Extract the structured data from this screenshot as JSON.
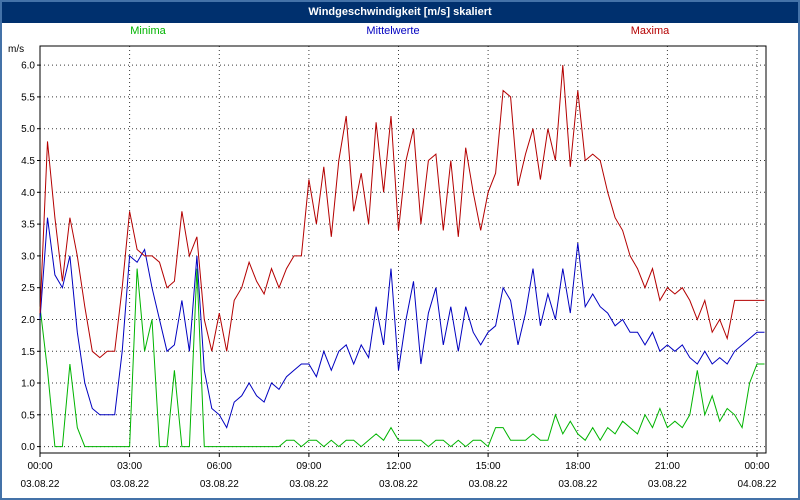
{
  "window": {
    "title": "Windgeschwindigkeit [m/s] skaliert"
  },
  "colors": {
    "titlebar_bg": "#00306e",
    "frame_border": "#4472a8",
    "grid": "#3a3a3a",
    "axis": "#000000",
    "minima": "#00b400",
    "mittelwerte": "#0000c0",
    "maxima": "#b40000"
  },
  "chart_data": {
    "type": "line",
    "title": "Windgeschwindigkeit [m/s] skaliert",
    "ylabel": "m/s",
    "xlabel": "",
    "grid": "dotted",
    "legend_position": "top",
    "ylim": [
      -0.1,
      6.3
    ],
    "xlim_hours": [
      0,
      24.3
    ],
    "x_step_hours": 0.25,
    "y_ticks": [
      6.0,
      5.5,
      5.0,
      4.5,
      4.0,
      3.5,
      3.0,
      2.5,
      2.0,
      1.5,
      1.0,
      0.5,
      0.0
    ],
    "x_ticks": [
      {
        "hour": 0,
        "time": "00:00",
        "date": "03.08.22"
      },
      {
        "hour": 3,
        "time": "03:00",
        "date": "03.08.22"
      },
      {
        "hour": 6,
        "time": "06:00",
        "date": "03.08.22"
      },
      {
        "hour": 9,
        "time": "09:00",
        "date": "03.08.22"
      },
      {
        "hour": 12,
        "time": "12:00",
        "date": "03.08.22"
      },
      {
        "hour": 15,
        "time": "15:00",
        "date": "03.08.22"
      },
      {
        "hour": 18,
        "time": "18:00",
        "date": "03.08.22"
      },
      {
        "hour": 21,
        "time": "21:00",
        "date": "03.08.22"
      },
      {
        "hour": 24,
        "time": "00:00",
        "date": "04.08.22"
      }
    ],
    "series": [
      {
        "name": "Minima",
        "color": "#00b400",
        "values": [
          2.2,
          1.2,
          0.0,
          0.0,
          1.3,
          0.3,
          0.0,
          0.0,
          0.0,
          0.0,
          0.0,
          0.0,
          0.0,
          2.8,
          1.5,
          2.0,
          0.0,
          0.0,
          1.2,
          0.0,
          0.0,
          2.8,
          0.0,
          0.0,
          0.0,
          0.0,
          0.0,
          0.0,
          0.0,
          0.0,
          0.0,
          0.0,
          0.0,
          0.1,
          0.1,
          0.0,
          0.1,
          0.1,
          0.0,
          0.1,
          0.0,
          0.1,
          0.1,
          0.0,
          0.1,
          0.2,
          0.1,
          0.3,
          0.1,
          0.1,
          0.1,
          0.1,
          0.0,
          0.1,
          0.1,
          0.0,
          0.1,
          0.0,
          0.1,
          0.1,
          0.0,
          0.3,
          0.3,
          0.1,
          0.1,
          0.1,
          0.2,
          0.1,
          0.1,
          0.5,
          0.2,
          0.4,
          0.2,
          0.1,
          0.3,
          0.1,
          0.3,
          0.2,
          0.4,
          0.3,
          0.2,
          0.5,
          0.3,
          0.6,
          0.3,
          0.4,
          0.3,
          0.5,
          1.2,
          0.5,
          0.8,
          0.4,
          0.6,
          0.5,
          0.3,
          1.0,
          1.3,
          1.3
        ]
      },
      {
        "name": "Mittelwerte",
        "color": "#0000c0",
        "values": [
          2.0,
          3.6,
          2.7,
          2.5,
          3.0,
          1.8,
          1.0,
          0.6,
          0.5,
          0.5,
          0.5,
          1.5,
          3.0,
          2.9,
          3.1,
          2.5,
          2.0,
          1.5,
          1.6,
          2.3,
          1.5,
          3.0,
          1.2,
          0.6,
          0.5,
          0.3,
          0.7,
          0.8,
          1.0,
          0.8,
          0.7,
          1.0,
          0.9,
          1.1,
          1.2,
          1.3,
          1.3,
          1.1,
          1.5,
          1.2,
          1.5,
          1.6,
          1.3,
          1.6,
          1.4,
          2.2,
          1.6,
          2.8,
          1.2,
          2.0,
          2.6,
          1.3,
          2.1,
          2.5,
          1.6,
          2.2,
          1.5,
          2.2,
          1.8,
          1.6,
          1.8,
          1.9,
          2.5,
          2.3,
          1.6,
          2.1,
          2.8,
          1.9,
          2.4,
          2.0,
          2.8,
          2.1,
          3.2,
          2.2,
          2.4,
          2.2,
          2.1,
          1.9,
          2.0,
          1.8,
          1.8,
          1.6,
          1.8,
          1.5,
          1.6,
          1.5,
          1.6,
          1.4,
          1.3,
          1.5,
          1.3,
          1.4,
          1.3,
          1.5,
          1.6,
          1.7,
          1.8,
          1.8
        ]
      },
      {
        "name": "Maxima",
        "color": "#b40000",
        "values": [
          2.1,
          4.8,
          3.6,
          2.6,
          3.6,
          3.0,
          2.2,
          1.5,
          1.4,
          1.5,
          1.5,
          2.5,
          3.7,
          3.1,
          3.0,
          3.0,
          2.9,
          2.5,
          2.6,
          3.7,
          3.0,
          3.3,
          2.0,
          1.5,
          2.1,
          1.5,
          2.3,
          2.5,
          2.9,
          2.6,
          2.4,
          2.8,
          2.5,
          2.8,
          3.0,
          3.0,
          4.2,
          3.5,
          4.4,
          3.3,
          4.5,
          5.2,
          3.7,
          4.3,
          3.5,
          5.1,
          4.0,
          5.2,
          3.4,
          4.5,
          5.0,
          3.5,
          4.5,
          4.6,
          3.4,
          4.5,
          3.3,
          4.7,
          4.0,
          3.4,
          4.0,
          4.3,
          5.6,
          5.5,
          4.1,
          4.6,
          5.0,
          4.2,
          5.0,
          4.5,
          6.0,
          4.4,
          5.6,
          4.5,
          4.6,
          4.5,
          4.0,
          3.6,
          3.4,
          3.0,
          2.8,
          2.5,
          2.8,
          2.3,
          2.5,
          2.4,
          2.5,
          2.3,
          2.0,
          2.3,
          1.8,
          2.0,
          1.7,
          2.3,
          2.3,
          2.3,
          2.3,
          2.3
        ]
      }
    ]
  }
}
